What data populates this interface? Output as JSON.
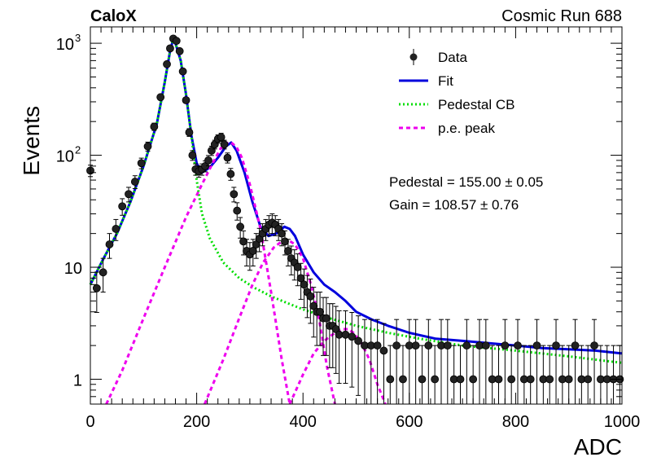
{
  "header": {
    "left": "CaloX",
    "right": "Cosmic Run 688"
  },
  "chart_data": {
    "type": "scatter",
    "xlabel": "ADC",
    "ylabel": "Events",
    "xlim": [
      0,
      1000
    ],
    "ylim": [
      0.6,
      1400
    ],
    "y_scale": "log",
    "x_ticks": [
      "0",
      "200",
      "400",
      "600",
      "800",
      "1000"
    ],
    "y_ticks": [
      {
        "value": 1,
        "label": "1"
      },
      {
        "value": 10,
        "label": "10"
      },
      {
        "value": 100,
        "label": "10",
        "exp": "2"
      },
      {
        "value": 1000,
        "label": "10",
        "exp": "3"
      }
    ],
    "legend": {
      "placement": "top-right",
      "entries": [
        {
          "label": "Data",
          "style": "marker",
          "color": "#000000"
        },
        {
          "label": "Fit",
          "style": "solid",
          "color": "#0000dd"
        },
        {
          "label": "Pedestal CB",
          "style": "dotted",
          "color": "#00dd00"
        },
        {
          "label": "p.e. peak",
          "style": "dashed",
          "color": "#ee00ee"
        }
      ]
    },
    "annotations": [
      "Pedestal = 155.00 ± 0.05",
      "Gain = 108.57 ± 0.76"
    ],
    "fit_params": {
      "pedestal": 155.0,
      "pedestal_err": 0.05,
      "gain": 108.57,
      "gain_err": 0.76
    },
    "series": [
      {
        "name": "Data",
        "style": "points",
        "color": "#000000",
        "x": [
          0,
          12,
          24,
          36,
          48,
          60,
          72,
          84,
          96,
          108,
          120,
          132,
          144,
          150,
          156,
          162,
          168,
          174,
          180,
          186,
          192,
          198,
          204,
          210,
          216,
          222,
          228,
          234,
          240,
          246,
          252,
          258,
          264,
          270,
          276,
          282,
          288,
          294,
          300,
          306,
          312,
          318,
          324,
          330,
          336,
          342,
          348,
          354,
          360,
          366,
          372,
          378,
          384,
          390,
          396,
          402,
          408,
          414,
          420,
          426,
          432,
          438,
          444,
          450,
          456,
          462,
          468,
          480,
          492,
          504,
          516,
          528,
          540,
          552,
          564,
          576,
          588,
          600,
          612,
          624,
          636,
          648,
          660,
          672,
          684,
          696,
          708,
          720,
          732,
          744,
          756,
          768,
          780,
          792,
          804,
          816,
          828,
          840,
          852,
          864,
          876,
          888,
          900,
          912,
          924,
          936,
          948,
          960,
          972,
          984,
          996
        ],
        "y": [
          73,
          6.5,
          9,
          16,
          22,
          35,
          45,
          58,
          85,
          120,
          180,
          330,
          650,
          900,
          1100,
          1050,
          850,
          560,
          310,
          160,
          100,
          75,
          72,
          75,
          80,
          90,
          110,
          125,
          140,
          145,
          125,
          95,
          68,
          45,
          32,
          23,
          17,
          14,
          13,
          14,
          16,
          18,
          20,
          22,
          24,
          25,
          24,
          22,
          20,
          17,
          14,
          12,
          11,
          10,
          8,
          7,
          6,
          5.5,
          4.5,
          4,
          4,
          3.5,
          3.5,
          3,
          3,
          2.8,
          2.5,
          2.5,
          2.4,
          2.2,
          2,
          2,
          2,
          1.8,
          1,
          2,
          1,
          2,
          2,
          1,
          2,
          1,
          2,
          2,
          1,
          1,
          2,
          1,
          2,
          2,
          1,
          1,
          2,
          1,
          2,
          1,
          1,
          2,
          1,
          1,
          2,
          1,
          1,
          2,
          1,
          1,
          2,
          1,
          1,
          1,
          1
        ]
      },
      {
        "name": "Fit",
        "style": "line",
        "color": "#0000dd",
        "x": [
          0,
          25,
          50,
          75,
          100,
          125,
          140,
          150,
          155,
          160,
          170,
          180,
          190,
          200,
          210,
          225,
          240,
          255,
          265,
          275,
          290,
          305,
          320,
          335,
          350,
          365,
          375,
          385,
          400,
          420,
          440,
          460,
          480,
          500,
          530,
          560,
          600,
          650,
          700,
          750,
          800,
          850,
          900,
          950,
          1000
        ],
        "y": [
          7,
          12,
          20,
          38,
          80,
          190,
          450,
          850,
          1050,
          1000,
          700,
          350,
          150,
          85,
          70,
          78,
          95,
          120,
          130,
          110,
          70,
          38,
          23,
          19,
          20,
          23,
          22,
          19,
          13,
          9,
          7,
          6,
          5,
          4,
          3.4,
          3,
          2.6,
          2.3,
          2.2,
          2.1,
          2,
          1.9,
          1.85,
          1.8,
          1.7
        ]
      },
      {
        "name": "Pedestal CB",
        "style": "dotted",
        "color": "#00dd00",
        "x": [
          0,
          25,
          50,
          75,
          100,
          125,
          140,
          150,
          155,
          160,
          170,
          180,
          190,
          200,
          210,
          225,
          250,
          280,
          310,
          340,
          370,
          400,
          450,
          500,
          560,
          620,
          700,
          800,
          900,
          1000
        ],
        "y": [
          7,
          12,
          20,
          38,
          80,
          190,
          450,
          850,
          1050,
          1000,
          700,
          350,
          150,
          60,
          30,
          18,
          11,
          8,
          6.5,
          5.5,
          4.8,
          4.2,
          3.5,
          3,
          2.6,
          2.3,
          2,
          1.8,
          1.6,
          1.4
        ]
      },
      {
        "name": "p.e. peak 1",
        "style": "dashed",
        "color": "#ee00ee",
        "x": [
          30,
          60,
          100,
          140,
          180,
          210,
          230,
          245,
          255,
          265,
          275,
          285,
          300,
          320,
          340,
          360,
          375
        ],
        "y": [
          0.6,
          1.2,
          3.5,
          10,
          28,
          55,
          85,
          115,
          128,
          130,
          118,
          95,
          55,
          22,
          6,
          1.5,
          0.6
        ]
      },
      {
        "name": "p.e. peak 2",
        "style": "dashed",
        "color": "#ee00ee",
        "x": [
          215,
          250,
          280,
          305,
          325,
          345,
          360,
          372,
          385,
          400,
          415,
          430,
          445,
          460
        ],
        "y": [
          0.6,
          1.5,
          3.5,
          7,
          11,
          15,
          17,
          17.5,
          16,
          12,
          7,
          3.5,
          1.3,
          0.6
        ]
      },
      {
        "name": "p.e. peak 3",
        "style": "dashed",
        "color": "#ee00ee",
        "x": [
          375,
          400,
          420,
          440,
          460,
          475,
          485,
          495,
          510,
          525,
          540,
          555
        ],
        "y": [
          0.6,
          1.1,
          1.7,
          2.2,
          2.6,
          2.8,
          2.8,
          2.6,
          2.1,
          1.5,
          0.9,
          0.6
        ]
      }
    ]
  }
}
